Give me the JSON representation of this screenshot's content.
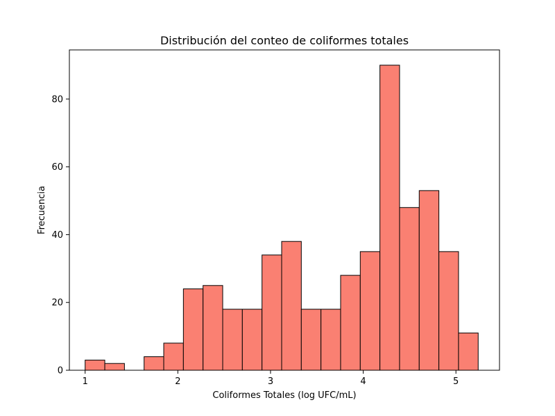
{
  "chart_data": {
    "type": "bar",
    "title": "Distribución del conteo de coliformes totales",
    "xlabel": "Coliformes Totales (log UFC/mL)",
    "ylabel": "Frecuencia",
    "bin_edges": [
      1.0,
      1.212,
      1.424,
      1.636,
      1.848,
      2.06,
      2.272,
      2.484,
      2.696,
      2.908,
      3.12,
      3.332,
      3.544,
      3.756,
      3.968,
      4.18,
      4.392,
      4.604,
      4.816,
      5.028,
      5.24
    ],
    "values": [
      3,
      2,
      0,
      4,
      8,
      24,
      25,
      18,
      18,
      34,
      38,
      18,
      18,
      28,
      35,
      90,
      48,
      53,
      35,
      11
    ],
    "xlim": [
      0.83,
      5.47
    ],
    "ylim": [
      0,
      94.5
    ],
    "xticks": [
      1,
      2,
      3,
      4,
      5
    ],
    "xtick_labels": [
      "1",
      "2",
      "3",
      "4",
      "5"
    ],
    "yticks": [
      0,
      20,
      40,
      60,
      80
    ],
    "ytick_labels": [
      "0",
      "20",
      "40",
      "60",
      "80"
    ],
    "bar_color": "#fa8072",
    "edge_color": "#000000",
    "grid": false
  }
}
